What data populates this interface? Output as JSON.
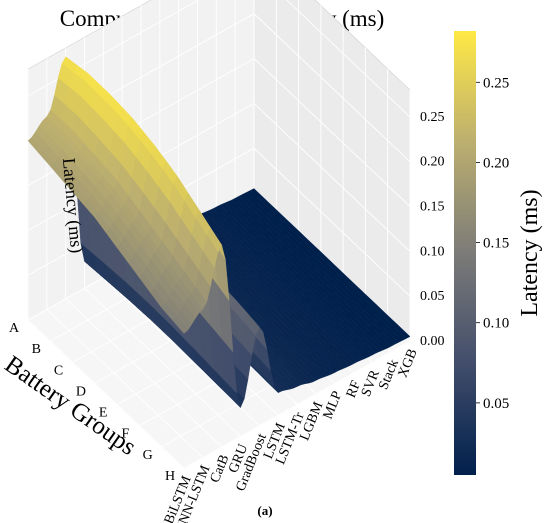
{
  "chart_data": {
    "type": "surface",
    "title": "Computation Cost — Latency (ms)",
    "caption": "(a)",
    "xlabel": "Battery Groups",
    "zlabel": "Latency (ms)",
    "x_categories": [
      "A",
      "B",
      "C",
      "D",
      "E",
      "F",
      "G",
      "H"
    ],
    "y_categories": [
      "BiLSTM",
      "CNN-LSTM",
      "CatB",
      "GRU",
      "GradBoost",
      "LSTM",
      "LSTM-Tr",
      "LGBM",
      "MLP",
      "RF",
      "SVR",
      "Stack",
      "XGB"
    ],
    "z_ticks": [
      "0.00",
      "0.05",
      "0.10",
      "0.15",
      "0.20",
      "0.25"
    ],
    "zlim": [
      0,
      0.28
    ],
    "colorbar": {
      "label": "Latency (ms)",
      "ticks": [
        "0.05",
        "0.10",
        "0.15",
        "0.20",
        "0.25"
      ],
      "range": [
        0.005,
        0.282
      ],
      "colormap": "cividis",
      "colors": [
        "#00204c",
        "#414d6b",
        "#7c7b78",
        "#bcaf6f",
        "#ffe945"
      ]
    },
    "grid": true,
    "z_values": [
      [
        0.2,
        0.215,
        0.27,
        0.03,
        0.11,
        0.025,
        0.02,
        0.015,
        0.012,
        0.01,
        0.008,
        0.006,
        0.005
      ],
      [
        0.195,
        0.215,
        0.275,
        0.032,
        0.115,
        0.026,
        0.021,
        0.016,
        0.012,
        0.01,
        0.008,
        0.006,
        0.005
      ],
      [
        0.19,
        0.21,
        0.275,
        0.034,
        0.118,
        0.027,
        0.021,
        0.016,
        0.012,
        0.01,
        0.008,
        0.006,
        0.005
      ],
      [
        0.185,
        0.205,
        0.272,
        0.035,
        0.12,
        0.028,
        0.022,
        0.017,
        0.013,
        0.01,
        0.008,
        0.006,
        0.005
      ],
      [
        0.175,
        0.195,
        0.265,
        0.035,
        0.12,
        0.028,
        0.022,
        0.017,
        0.013,
        0.01,
        0.008,
        0.006,
        0.005
      ],
      [
        0.165,
        0.185,
        0.255,
        0.034,
        0.118,
        0.027,
        0.021,
        0.016,
        0.012,
        0.01,
        0.008,
        0.006,
        0.005
      ],
      [
        0.155,
        0.175,
        0.24,
        0.033,
        0.115,
        0.026,
        0.021,
        0.016,
        0.012,
        0.01,
        0.008,
        0.006,
        0.005
      ],
      [
        0.15,
        0.165,
        0.225,
        0.032,
        0.11,
        0.025,
        0.02,
        0.015,
        0.012,
        0.01,
        0.008,
        0.006,
        0.005
      ]
    ]
  }
}
